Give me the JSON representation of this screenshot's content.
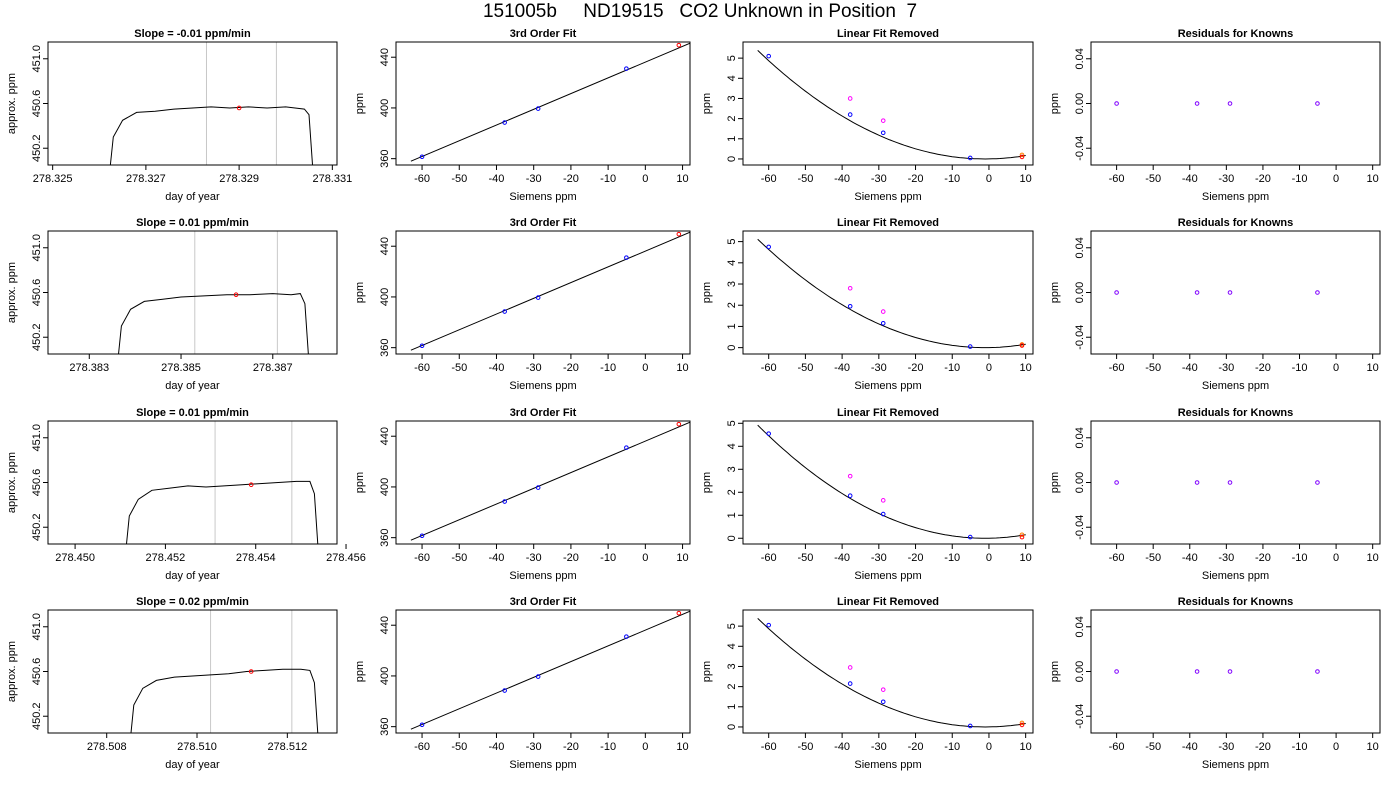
{
  "page_title": "151005b     ND19515   CO2 Unknown in Position  7",
  "colors": {
    "trace": "#000000",
    "window_line": "#c8c8c8",
    "mean_point": "#ff0000",
    "fit_line": "#000000",
    "known_point": "#0000ff",
    "unknown_point": "#ff0000",
    "raw_point": "#ff00ff",
    "orange_point": "#ff8000",
    "residual_point": "#8000ff"
  },
  "chart_data": [
    {
      "type": "line",
      "title": "Slope =  -0.01  ppm/min",
      "xlabel": "day of year",
      "ylabel": "approx. ppm",
      "xlim": [
        278.3249,
        278.3311
      ],
      "ylim": [
        450.05,
        451.15
      ],
      "xticks": [
        "278.325",
        "278.327",
        "278.329",
        "278.331"
      ],
      "yticks": [
        "450.2",
        "450.6",
        "451.0"
      ],
      "window_lines": [
        278.3283,
        278.3298
      ],
      "mean_point": {
        "x": 278.329,
        "y": 450.56
      },
      "trace": [
        [
          278.3262,
          449.9
        ],
        [
          278.3263,
          450.3
        ],
        [
          278.3265,
          450.45
        ],
        [
          278.3268,
          450.52
        ],
        [
          278.3272,
          450.53
        ],
        [
          278.3276,
          450.55
        ],
        [
          278.328,
          450.56
        ],
        [
          278.3284,
          450.57
        ],
        [
          278.3288,
          450.56
        ],
        [
          278.3292,
          450.57
        ],
        [
          278.3296,
          450.56
        ],
        [
          278.33,
          450.57
        ],
        [
          278.3304,
          450.55
        ],
        [
          278.3305,
          450.5
        ],
        [
          278.3306,
          449.9
        ]
      ]
    },
    {
      "type": "scatter",
      "title": "3rd Order Fit",
      "xlabel": "Siemens ppm",
      "ylabel": "ppm",
      "xlim": [
        -67,
        12
      ],
      "ylim": [
        355,
        452
      ],
      "xticks": [
        -60,
        -50,
        -40,
        -30,
        -20,
        -10,
        0,
        10
      ],
      "yticks": [
        360,
        400,
        440
      ],
      "fit_line": [
        [
          -63,
          358
        ],
        [
          12,
          451
        ]
      ],
      "knowns": [
        [
          -60,
          361.5
        ],
        [
          -37.8,
          388.5
        ],
        [
          -28.8,
          399.5
        ],
        [
          -5.1,
          431
        ]
      ],
      "unknown": [
        [
          9,
          449.5
        ]
      ]
    },
    {
      "type": "scatter",
      "title": "Linear Fit Removed",
      "xlabel": "Siemens ppm",
      "ylabel": "ppm",
      "xlim": [
        -67,
        12
      ],
      "ylim": [
        -0.3,
        5.8
      ],
      "xticks": [
        -60,
        -50,
        -40,
        -30,
        -20,
        -10,
        0,
        10
      ],
      "yticks": [
        0,
        1,
        2,
        3,
        4,
        5
      ],
      "fit_quad": {
        "x0": -1,
        "a": 0.0014
      },
      "fit_xrange": [
        -63,
        10
      ],
      "knowns": [
        [
          -60,
          5.1
        ],
        [
          -37.8,
          2.2
        ],
        [
          -28.8,
          1.3
        ],
        [
          -5.1,
          0.05
        ]
      ],
      "raw_points": [
        [
          -37.8,
          3.0
        ],
        [
          -28.8,
          1.9
        ]
      ],
      "orange_points": [
        [
          9,
          0.2
        ]
      ],
      "unknown": [
        [
          9,
          0.1
        ]
      ]
    },
    {
      "type": "scatter",
      "title": "Residuals for Knowns",
      "xlabel": "Siemens ppm",
      "ylabel": "ppm",
      "xlim": [
        -67,
        12
      ],
      "ylim": [
        -0.055,
        0.055
      ],
      "xticks": [
        -60,
        -50,
        -40,
        -30,
        -20,
        -10,
        0,
        10
      ],
      "yticks": [
        "-0.04",
        "0.00",
        "0.04"
      ],
      "points": [
        [
          -60,
          0
        ],
        [
          -38,
          0
        ],
        [
          -29,
          0
        ],
        [
          -5.1,
          0
        ]
      ]
    },
    {
      "type": "line",
      "title": "Slope =  0.01  ppm/min",
      "xlabel": "day of year",
      "ylabel": "approx. ppm",
      "xlim": [
        278.3821,
        278.3884
      ],
      "ylim": [
        450.05,
        451.15
      ],
      "xticks": [
        "278.383",
        "278.385",
        "278.387"
      ],
      "yticks": [
        "450.2",
        "450.6",
        "451.0"
      ],
      "window_lines": [
        278.3853,
        278.3871
      ],
      "mean_point": {
        "x": 278.3862,
        "y": 450.58
      },
      "trace": [
        [
          278.3836,
          449.9
        ],
        [
          278.3837,
          450.3
        ],
        [
          278.3839,
          450.45
        ],
        [
          278.3842,
          450.52
        ],
        [
          278.3846,
          450.54
        ],
        [
          278.385,
          450.56
        ],
        [
          278.3855,
          450.57
        ],
        [
          278.386,
          450.58
        ],
        [
          278.3865,
          450.58
        ],
        [
          278.387,
          450.59
        ],
        [
          278.3874,
          450.58
        ],
        [
          278.3876,
          450.59
        ],
        [
          278.3877,
          450.5
        ],
        [
          278.3878,
          449.9
        ]
      ]
    },
    {
      "type": "scatter",
      "title": "3rd Order Fit",
      "xlabel": "Siemens ppm",
      "ylabel": "ppm",
      "xlim": [
        -67,
        12
      ],
      "ylim": [
        355,
        452
      ],
      "xticks": [
        -60,
        -50,
        -40,
        -30,
        -20,
        -10,
        0,
        10
      ],
      "yticks": [
        360,
        400,
        440
      ],
      "fit_line": [
        [
          -63,
          358
        ],
        [
          12,
          451
        ]
      ],
      "knowns": [
        [
          -60,
          361.5
        ],
        [
          -37.8,
          388.5
        ],
        [
          -28.8,
          399.5
        ],
        [
          -5.1,
          431
        ]
      ],
      "unknown": [
        [
          9,
          449.5
        ]
      ]
    },
    {
      "type": "scatter",
      "title": "Linear Fit Removed",
      "xlabel": "Siemens ppm",
      "ylabel": "ppm",
      "xlim": [
        -67,
        12
      ],
      "ylim": [
        -0.3,
        5.5
      ],
      "xticks": [
        -60,
        -50,
        -40,
        -30,
        -20,
        -10,
        0,
        10
      ],
      "yticks": [
        0,
        1,
        2,
        3,
        4,
        5
      ],
      "fit_quad": {
        "x0": -1,
        "a": 0.00133
      },
      "fit_xrange": [
        -63,
        10
      ],
      "knowns": [
        [
          -60,
          4.75
        ],
        [
          -37.8,
          1.95
        ],
        [
          -28.8,
          1.15
        ],
        [
          -5.1,
          0.05
        ]
      ],
      "raw_points": [
        [
          -37.8,
          2.8
        ],
        [
          -28.8,
          1.7
        ]
      ],
      "orange_points": [
        [
          9,
          0.15
        ]
      ],
      "unknown": [
        [
          9,
          0.1
        ]
      ]
    },
    {
      "type": "scatter",
      "title": "Residuals for Knowns",
      "xlabel": "Siemens ppm",
      "ylabel": "ppm",
      "xlim": [
        -67,
        12
      ],
      "ylim": [
        -0.055,
        0.055
      ],
      "xticks": [
        -60,
        -50,
        -40,
        -30,
        -20,
        -10,
        0,
        10
      ],
      "yticks": [
        "-0.04",
        "0.00",
        "0.04"
      ],
      "points": [
        [
          -60,
          0
        ],
        [
          -38,
          0
        ],
        [
          -29,
          0
        ],
        [
          -5.1,
          0
        ]
      ]
    },
    {
      "type": "line",
      "title": "Slope =  0.01  ppm/min",
      "xlabel": "day of year",
      "ylabel": "approx. ppm",
      "xlim": [
        278.4494,
        278.4558
      ],
      "ylim": [
        450.05,
        451.15
      ],
      "xticks": [
        "278.450",
        "278.452",
        "278.454",
        "278.456"
      ],
      "yticks": [
        "450.2",
        "450.6",
        "451.0"
      ],
      "window_lines": [
        278.4531,
        278.4548
      ],
      "mean_point": {
        "x": 278.4539,
        "y": 450.58
      },
      "trace": [
        [
          278.4511,
          449.9
        ],
        [
          278.4512,
          450.3
        ],
        [
          278.4514,
          450.45
        ],
        [
          278.4517,
          450.53
        ],
        [
          278.4521,
          450.55
        ],
        [
          278.4525,
          450.57
        ],
        [
          278.4529,
          450.56
        ],
        [
          278.4533,
          450.57
        ],
        [
          278.4537,
          450.58
        ],
        [
          278.4541,
          450.59
        ],
        [
          278.4545,
          450.6
        ],
        [
          278.4549,
          450.61
        ],
        [
          278.4552,
          450.61
        ],
        [
          278.4553,
          450.5
        ],
        [
          278.4554,
          449.9
        ]
      ]
    },
    {
      "type": "scatter",
      "title": "3rd Order Fit",
      "xlabel": "Siemens ppm",
      "ylabel": "ppm",
      "xlim": [
        -67,
        12
      ],
      "ylim": [
        355,
        452
      ],
      "xticks": [
        -60,
        -50,
        -40,
        -30,
        -20,
        -10,
        0,
        10
      ],
      "yticks": [
        360,
        400,
        440
      ],
      "fit_line": [
        [
          -63,
          358
        ],
        [
          12,
          451
        ]
      ],
      "knowns": [
        [
          -60,
          361.5
        ],
        [
          -37.8,
          388.5
        ],
        [
          -28.8,
          399.5
        ],
        [
          -5.1,
          431
        ]
      ],
      "unknown": [
        [
          9,
          449.5
        ]
      ]
    },
    {
      "type": "scatter",
      "title": "Linear Fit Removed",
      "xlabel": "Siemens ppm",
      "ylabel": "ppm",
      "xlim": [
        -67,
        12
      ],
      "ylim": [
        -0.25,
        5.1
      ],
      "xticks": [
        -60,
        -50,
        -40,
        -30,
        -20,
        -10,
        0,
        10
      ],
      "yticks": [
        0,
        1,
        2,
        3,
        4,
        5
      ],
      "fit_quad": {
        "x0": -1,
        "a": 0.00128
      },
      "fit_xrange": [
        -63,
        10
      ],
      "knowns": [
        [
          -60,
          4.55
        ],
        [
          -37.8,
          1.85
        ],
        [
          -28.8,
          1.05
        ],
        [
          -5.1,
          0.05
        ]
      ],
      "raw_points": [
        [
          -37.8,
          2.7
        ],
        [
          -28.8,
          1.65
        ]
      ],
      "orange_points": [
        [
          9,
          0.15
        ]
      ],
      "unknown": [
        [
          9,
          0.05
        ]
      ]
    },
    {
      "type": "scatter",
      "title": "Residuals for Knowns",
      "xlabel": "Siemens ppm",
      "ylabel": "ppm",
      "xlim": [
        -67,
        12
      ],
      "ylim": [
        -0.055,
        0.055
      ],
      "xticks": [
        -60,
        -50,
        -40,
        -30,
        -20,
        -10,
        0,
        10
      ],
      "yticks": [
        "-0.04",
        "0.00",
        "0.04"
      ],
      "points": [
        [
          -60,
          0
        ],
        [
          -38,
          0
        ],
        [
          -29,
          0
        ],
        [
          -5.1,
          0
        ]
      ]
    },
    {
      "type": "line",
      "title": "Slope =  0.02  ppm/min",
      "xlabel": "day of year",
      "ylabel": "approx. ppm",
      "xlim": [
        278.5067,
        278.5131
      ],
      "ylim": [
        450.05,
        451.15
      ],
      "xticks": [
        "278.508",
        "278.510",
        "278.512"
      ],
      "yticks": [
        "450.2",
        "450.6",
        "451.0"
      ],
      "window_lines": [
        278.5103,
        278.5121
      ],
      "mean_point": {
        "x": 278.5112,
        "y": 450.6
      },
      "trace": [
        [
          278.5085,
          449.9
        ],
        [
          278.5086,
          450.3
        ],
        [
          278.5088,
          450.45
        ],
        [
          278.5091,
          450.52
        ],
        [
          278.5095,
          450.55
        ],
        [
          278.5099,
          450.56
        ],
        [
          278.5103,
          450.57
        ],
        [
          278.5107,
          450.58
        ],
        [
          278.5111,
          450.6
        ],
        [
          278.5115,
          450.61
        ],
        [
          278.5119,
          450.62
        ],
        [
          278.5123,
          450.62
        ],
        [
          278.5125,
          450.61
        ],
        [
          278.5126,
          450.5
        ],
        [
          278.5127,
          449.9
        ]
      ]
    },
    {
      "type": "scatter",
      "title": "3rd Order Fit",
      "xlabel": "Siemens ppm",
      "ylabel": "ppm",
      "xlim": [
        -67,
        12
      ],
      "ylim": [
        355,
        452
      ],
      "xticks": [
        -60,
        -50,
        -40,
        -30,
        -20,
        -10,
        0,
        10
      ],
      "yticks": [
        360,
        400,
        440
      ],
      "fit_line": [
        [
          -63,
          358
        ],
        [
          12,
          451
        ]
      ],
      "knowns": [
        [
          -60,
          361.5
        ],
        [
          -37.8,
          388.5
        ],
        [
          -28.8,
          399.5
        ],
        [
          -5.1,
          431
        ]
      ],
      "unknown": [
        [
          9,
          449.5
        ]
      ]
    },
    {
      "type": "scatter",
      "title": "Linear Fit Removed",
      "xlabel": "Siemens ppm",
      "ylabel": "ppm",
      "xlim": [
        -67,
        12
      ],
      "ylim": [
        -0.3,
        5.8
      ],
      "xticks": [
        -60,
        -50,
        -40,
        -30,
        -20,
        -10,
        0,
        10
      ],
      "yticks": [
        0,
        1,
        2,
        3,
        4,
        5
      ],
      "fit_quad": {
        "x0": -1,
        "a": 0.0014
      },
      "fit_xrange": [
        -63,
        10
      ],
      "knowns": [
        [
          -60,
          5.05
        ],
        [
          -37.8,
          2.15
        ],
        [
          -28.8,
          1.25
        ],
        [
          -5.1,
          0.05
        ]
      ],
      "raw_points": [
        [
          -37.8,
          2.95
        ],
        [
          -28.8,
          1.85
        ]
      ],
      "orange_points": [
        [
          9,
          0.2
        ]
      ],
      "unknown": [
        [
          9,
          0.1
        ]
      ]
    },
    {
      "type": "scatter",
      "title": "Residuals for Knowns",
      "xlabel": "Siemens ppm",
      "ylabel": "ppm",
      "xlim": [
        -67,
        12
      ],
      "ylim": [
        -0.055,
        0.055
      ],
      "xticks": [
        -60,
        -50,
        -40,
        -30,
        -20,
        -10,
        0,
        10
      ],
      "yticks": [
        "-0.04",
        "0.00",
        "0.04"
      ],
      "points": [
        [
          -60,
          0
        ],
        [
          -38,
          0
        ],
        [
          -29,
          0
        ],
        [
          -5.1,
          0
        ]
      ]
    }
  ]
}
